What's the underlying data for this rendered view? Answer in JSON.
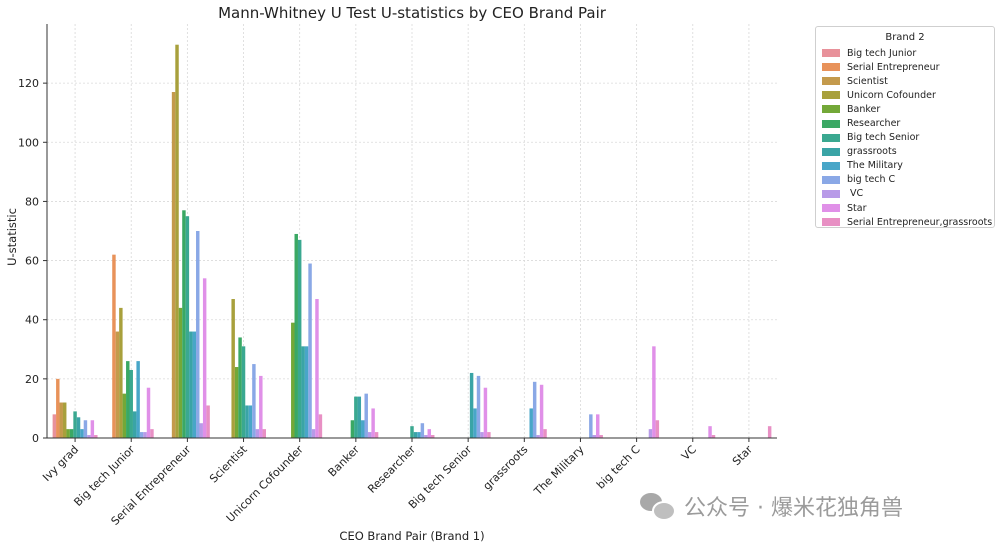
{
  "chart_data": {
    "type": "bar",
    "title": "Mann-Whitney U Test U-statistics by CEO Brand Pair",
    "xlabel": "CEO Brand Pair (Brand 1)",
    "ylabel": "U-statistic",
    "ylim": [
      0,
      140
    ],
    "yticks": [
      0,
      20,
      40,
      60,
      80,
      100,
      120
    ],
    "grid": true,
    "legend_title": "Brand 2",
    "legend_position": "outside-right",
    "categories": [
      "Ivy grad",
      "Big tech Junior",
      "Serial Entrepreneur",
      "Scientist",
      "Unicorn Cofounder",
      "Banker",
      "Researcher",
      "Big tech Senior",
      "grassroots",
      "The Military",
      "big tech C",
      "VC",
      "Star"
    ],
    "series": [
      {
        "name": "Big tech Junior",
        "color": "#e8919a",
        "values": [
          8,
          0,
          0,
          0,
          0,
          0,
          0,
          0,
          0,
          0,
          0,
          0,
          0
        ]
      },
      {
        "name": "Serial Entrepreneur",
        "color": "#e8925a",
        "values": [
          20,
          62,
          0,
          0,
          0,
          0,
          0,
          0,
          0,
          0,
          0,
          0,
          0
        ]
      },
      {
        "name": "Scientist",
        "color": "#c49a4c",
        "values": [
          12,
          36,
          117,
          0,
          0,
          0,
          0,
          0,
          0,
          0,
          0,
          0,
          0
        ]
      },
      {
        "name": "Unicorn Cofounder",
        "color": "#a8a03c",
        "values": [
          12,
          44,
          133,
          47,
          0,
          0,
          0,
          0,
          0,
          0,
          0,
          0,
          0
        ]
      },
      {
        "name": "Banker",
        "color": "#73a838",
        "values": [
          3,
          15,
          44,
          24,
          39,
          0,
          0,
          0,
          0,
          0,
          0,
          0,
          0
        ]
      },
      {
        "name": "Researcher",
        "color": "#3aa864",
        "values": [
          3,
          26,
          77,
          34,
          69,
          6,
          0,
          0,
          0,
          0,
          0,
          0,
          0
        ]
      },
      {
        "name": "Big tech Senior",
        "color": "#3aa890",
        "values": [
          9,
          23,
          75,
          31,
          67,
          14,
          4,
          0,
          0,
          0,
          0,
          0,
          0
        ]
      },
      {
        "name": "grassroots",
        "color": "#3aa4a6",
        "values": [
          7,
          9,
          36,
          11,
          31,
          14,
          2,
          22,
          0,
          0,
          0,
          0,
          0
        ]
      },
      {
        "name": "The Military",
        "color": "#48a6c8",
        "values": [
          3,
          26,
          36,
          11,
          31,
          6,
          2,
          10,
          10,
          0,
          0,
          0,
          0
        ]
      },
      {
        "name": "big tech C",
        "color": "#8aa8e6",
        "values": [
          6,
          2,
          70,
          25,
          59,
          15,
          5,
          21,
          19,
          8,
          0,
          0,
          0
        ]
      },
      {
        "name": " VC",
        "color": "#b89ae8",
        "values": [
          1,
          2,
          5,
          3,
          3,
          2,
          1,
          2,
          1,
          1,
          3,
          0,
          0
        ]
      },
      {
        "name": "Star",
        "color": "#e090e8",
        "values": [
          6,
          17,
          54,
          21,
          47,
          10,
          3,
          17,
          18,
          8,
          31,
          4,
          0
        ]
      },
      {
        "name": "Serial Entrepreneur,grassroots",
        "color": "#e890c4",
        "values": [
          1,
          3,
          11,
          3,
          8,
          2,
          1,
          2,
          3,
          1,
          6,
          1,
          4
        ]
      }
    ]
  },
  "watermark": {
    "text": "公众号 · 爆米花独角兽",
    "icon": "wechat-icon"
  }
}
